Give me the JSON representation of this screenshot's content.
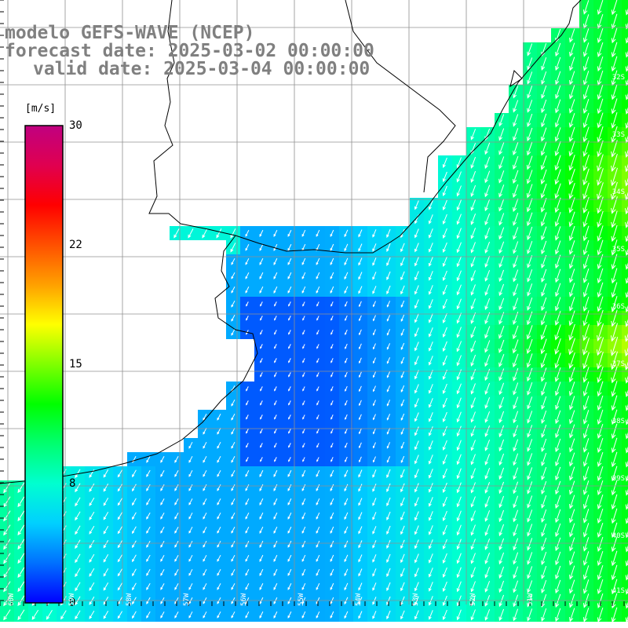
{
  "title": {
    "model": "modelo GEFS-WAVE (NCEP)",
    "forecast": "forecast date: 2025-03-02 00:00:00",
    "valid": "valid date: 2025-03-04 00:00:00"
  },
  "colorbar": {
    "unit": "[m/s]",
    "min": 0,
    "max": 30,
    "ticks": [
      "30",
      "22",
      "15",
      "8",
      "0"
    ],
    "stops": [
      "#0000ff",
      "#0070ff",
      "#00d0ff",
      "#00ffd0",
      "#00ff70",
      "#00ff00",
      "#80ff00",
      "#ffff00",
      "#ffa000",
      "#ff5000",
      "#ff0000",
      "#e00050",
      "#c00080"
    ]
  },
  "lat_labels": [
    "32S",
    "33S",
    "34S",
    "35S",
    "36S",
    "37S",
    "38S",
    "39S",
    "40S",
    "41S"
  ],
  "lon_labels": [
    "60W",
    "59W",
    "58W",
    "57W",
    "56W",
    "55W",
    "54W",
    "53W",
    "52W",
    "51W"
  ],
  "colors": {
    "land": "#ffffff",
    "coast": "#000000",
    "grid": "#909090",
    "arrow": "#ffffff"
  }
}
